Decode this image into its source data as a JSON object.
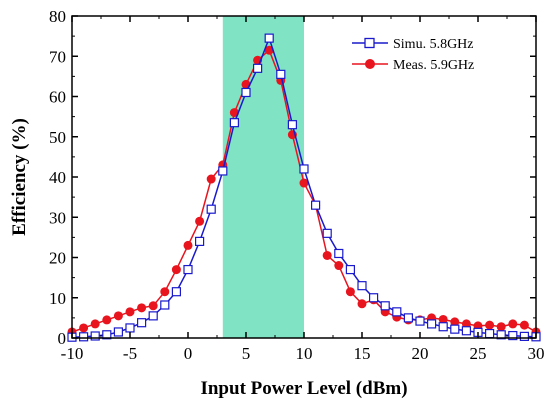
{
  "chart_data": {
    "type": "line",
    "xlabel": "Input Power Level (dBm)",
    "ylabel": "Efficiency (%)",
    "xlim": [
      -10,
      30
    ],
    "ylim": [
      0,
      80
    ],
    "x_ticks": [
      -10,
      -5,
      0,
      5,
      10,
      15,
      20,
      25,
      30
    ],
    "y_ticks": [
      0,
      10,
      20,
      30,
      40,
      50,
      60,
      70,
      80
    ],
    "highlight_band": {
      "x_range": [
        3,
        10
      ],
      "color": "#7fe3c4"
    },
    "legend_position": "top-right",
    "grid": false,
    "series": [
      {
        "name": "Simu. 5.8GHz",
        "color": "#1a1acc",
        "marker": "open-square",
        "x": [
          -10,
          -9,
          -8,
          -7,
          -6,
          -5,
          -4,
          -3,
          -2,
          -1,
          0,
          1,
          2,
          3,
          4,
          5,
          6,
          7,
          8,
          9,
          10,
          11,
          12,
          13,
          14,
          15,
          16,
          17,
          18,
          19,
          20,
          21,
          22,
          23,
          24,
          25,
          26,
          27,
          28,
          29,
          30
        ],
        "y": [
          0.2,
          0.3,
          0.5,
          0.8,
          1.5,
          2.5,
          3.8,
          5.5,
          8.2,
          11.5,
          17,
          24,
          32,
          41.5,
          53.5,
          61,
          67,
          74.5,
          65.5,
          53,
          42,
          33,
          26,
          21,
          17,
          13,
          10,
          8,
          6.5,
          5,
          4.2,
          3.5,
          2.8,
          2.2,
          1.8,
          1.4,
          1.1,
          0.8,
          0.6,
          0.4,
          0.3
        ]
      },
      {
        "name": "Meas. 5.9GHz",
        "color": "#e8141e",
        "marker": "filled-circle",
        "x": [
          -10,
          -9,
          -8,
          -7,
          -6,
          -5,
          -4,
          -3,
          -2,
          -1,
          0,
          1,
          2,
          3,
          4,
          5,
          6,
          7,
          8,
          9,
          10,
          11,
          12,
          13,
          14,
          15,
          16,
          17,
          18,
          19,
          20,
          21,
          22,
          23,
          24,
          25,
          26,
          27,
          28,
          29,
          30
        ],
        "y": [
          1.5,
          2.5,
          3.5,
          4.5,
          5.5,
          6.5,
          7.5,
          8,
          11.5,
          17,
          23,
          29,
          39.5,
          43,
          56,
          63,
          69,
          71.5,
          64,
          50.5,
          38.5,
          33,
          20.5,
          18,
          11.5,
          8.5,
          9.5,
          6.5,
          5.2,
          4.5,
          4.5,
          5,
          4.6,
          4,
          3.5,
          3,
          3.2,
          2.8,
          3.5,
          3.2,
          1.5
        ]
      }
    ]
  }
}
